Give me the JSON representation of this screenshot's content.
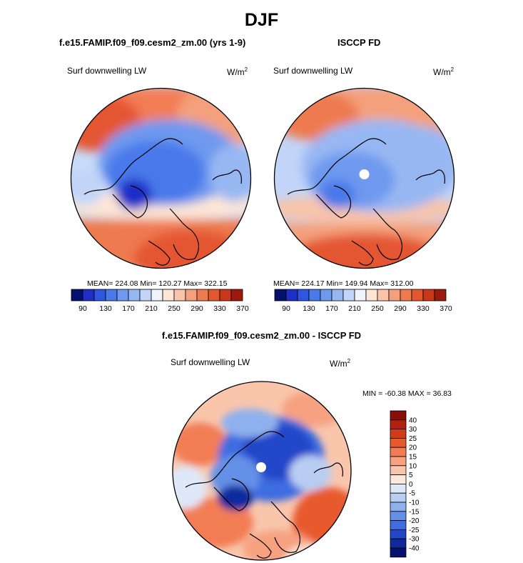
{
  "figure": {
    "title": "DJF",
    "left_panel": {
      "subtitle": "f.e15.FAMIP.f09_f09.cesm2_zm.00 (yrs 1-9)",
      "variable": "Surf downwelling LW",
      "units_base": "W/m",
      "units_exp": "2",
      "stats": "MEAN= 224.08  Min= 120.27  Max= 322.15"
    },
    "right_panel": {
      "subtitle": "ISCCP FD",
      "variable": "Surf downwelling LW",
      "units_base": "W/m",
      "units_exp": "2",
      "stats": "MEAN= 224.17  Min= 149.94  Max= 312.00"
    },
    "diff_panel": {
      "subtitle": "f.e15.FAMIP.f09_f09.cesm2_zm.00 - ISCCP FD",
      "variable": "Surf downwelling LW",
      "units_base": "W/m",
      "units_exp": "2",
      "stats": "MIN = -60.38 MAX =  36.83"
    }
  },
  "chart_data": [
    {
      "type": "heatmap",
      "projection": "north polar stereographic",
      "title": "f.e15.FAMIP.f09_f09.cesm2_zm.00 (yrs 1-9)",
      "variable": "Surf downwelling LW",
      "units": "W/m2",
      "mean": 224.08,
      "min": 120.27,
      "max": 322.15,
      "colorbar": {
        "orientation": "horizontal",
        "tick_labels": [
          "90",
          "130",
          "170",
          "210",
          "250",
          "290",
          "330",
          "370"
        ],
        "colors": [
          "#06106e",
          "#1e2fc8",
          "#2f56e0",
          "#4a79ea",
          "#6e99ef",
          "#97b7f3",
          "#c2d5f8",
          "#eef3fc",
          "#fde6d6",
          "#f9c4aa",
          "#f4a07c",
          "#ee7a50",
          "#e45630",
          "#c93618",
          "#9c1a0c"
        ]
      }
    },
    {
      "type": "heatmap",
      "projection": "north polar stereographic",
      "title": "ISCCP FD",
      "variable": "Surf downwelling LW",
      "units": "W/m2",
      "mean": 224.17,
      "min": 149.94,
      "max": 312.0,
      "colorbar": {
        "orientation": "horizontal",
        "tick_labels": [
          "90",
          "130",
          "170",
          "210",
          "250",
          "290",
          "330",
          "370"
        ],
        "colors": [
          "#06106e",
          "#1e2fc8",
          "#2f56e0",
          "#4a79ea",
          "#6e99ef",
          "#97b7f3",
          "#c2d5f8",
          "#eef3fc",
          "#fde6d6",
          "#f9c4aa",
          "#f4a07c",
          "#ee7a50",
          "#e45630",
          "#c93618",
          "#9c1a0c"
        ]
      }
    },
    {
      "type": "heatmap",
      "projection": "north polar stereographic",
      "title": "f.e15.FAMIP.f09_f09.cesm2_zm.00 - ISCCP FD",
      "variable": "Surf downwelling LW",
      "units": "W/m2",
      "min": -60.38,
      "max": 36.83,
      "colorbar": {
        "orientation": "vertical",
        "tick_labels": [
          "40",
          "30",
          "25",
          "20",
          "15",
          "10",
          "5",
          "0",
          "-5",
          "-10",
          "-15",
          "-20",
          "-25",
          "-30",
          "-40"
        ],
        "colors": [
          "#8a0e08",
          "#b3220f",
          "#d23a18",
          "#e85a2e",
          "#f27d55",
          "#f6a281",
          "#f9c6ac",
          "#fde9dc",
          "#dfe8f8",
          "#b9cdf3",
          "#8fb0ee",
          "#6590e8",
          "#3d6de0",
          "#2247c9",
          "#102a9e",
          "#06106e"
        ]
      }
    }
  ]
}
